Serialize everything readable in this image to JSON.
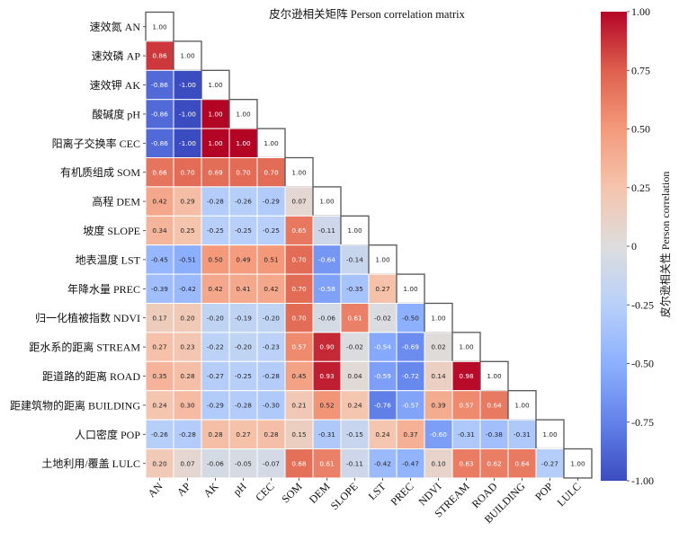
{
  "chart_data": {
    "type": "heatmap",
    "title": "皮尔逊相关矩阵 Person correlation matrix",
    "row_labels": [
      "速效氮 AN",
      "速效磷 AP",
      "速效钾 AK",
      "酸碱度 pH",
      "阳离子交换率 CEC",
      "有机质组成 SOM",
      "高程 DEM",
      "坡度 SLOPE",
      "地表温度 LST",
      "年降水量 PREC",
      "归一化植被指数 NDVI",
      "距水系的距离 STREAM",
      "距道路的距离 ROAD",
      "距建筑物的距离 BUILDING",
      "人口密度 POP",
      "土地利用/覆盖 LULC"
    ],
    "col_labels": [
      "AN",
      "AP",
      "AK",
      "pH",
      "CEC",
      "SOM",
      "DEM",
      "SLOPE",
      "LST",
      "PREC",
      "NDVI",
      "STREAM",
      "ROAD",
      "BUILDING",
      "POP",
      "LULC"
    ],
    "values": [
      [
        1.0
      ],
      [
        0.86,
        1.0
      ],
      [
        -0.86,
        -1.0,
        1.0
      ],
      [
        -0.86,
        -1.0,
        1.0,
        1.0
      ],
      [
        -0.86,
        -1.0,
        1.0,
        1.0,
        1.0
      ],
      [
        0.66,
        0.7,
        0.69,
        0.7,
        0.7,
        1.0
      ],
      [
        0.42,
        0.29,
        -0.28,
        -0.26,
        -0.29,
        0.07,
        1.0
      ],
      [
        0.34,
        0.25,
        -0.25,
        -0.25,
        -0.25,
        0.65,
        -0.11,
        1.0
      ],
      [
        -0.45,
        -0.51,
        0.5,
        0.49,
        0.51,
        0.7,
        -0.64,
        -0.14,
        1.0
      ],
      [
        -0.39,
        -0.42,
        0.42,
        0.41,
        0.42,
        0.7,
        -0.58,
        -0.35,
        0.27,
        1.0
      ],
      [
        0.17,
        0.2,
        -0.2,
        -0.19,
        -0.2,
        0.7,
        -0.06,
        0.61,
        -0.02,
        -0.5,
        1.0
      ],
      [
        0.27,
        0.23,
        -0.22,
        -0.2,
        -0.23,
        0.57,
        0.9,
        -0.02,
        -0.54,
        -0.69,
        0.02,
        1.0
      ],
      [
        0.35,
        0.28,
        -0.27,
        -0.25,
        -0.28,
        0.45,
        0.93,
        0.04,
        -0.59,
        -0.72,
        0.14,
        0.98,
        1.0
      ],
      [
        0.24,
        0.3,
        -0.29,
        -0.28,
        -0.3,
        0.21,
        0.52,
        0.24,
        -0.76,
        -0.57,
        0.39,
        0.57,
        0.64,
        1.0
      ],
      [
        -0.26,
        -0.28,
        0.28,
        0.27,
        0.28,
        0.15,
        -0.31,
        -0.15,
        0.24,
        0.37,
        -0.6,
        -0.31,
        -0.38,
        -0.31,
        1.0
      ],
      [
        0.2,
        0.07,
        -0.06,
        -0.05,
        -0.07,
        0.68,
        0.61,
        -0.11,
        -0.42,
        -0.47,
        0.1,
        0.63,
        0.62,
        0.64,
        -0.27,
        1.0
      ]
    ],
    "mask": "upper triangle",
    "diagonal_style": "white cell with gray border",
    "colormap": "coolwarm",
    "color_range": [
      -1,
      1
    ],
    "colorbar": {
      "label": "皮尔逊相关性 Person correlation",
      "ticks": [
        1.0,
        0.75,
        0.5,
        0.25,
        0,
        -0.25,
        -0.5,
        -0.75,
        -1.0
      ],
      "tick_labels": [
        "1.00",
        "0.75",
        "0.50",
        "0.25",
        "0",
        "-0.25",
        "-0.50",
        "-0.75",
        "-1.00"
      ],
      "placement": "right"
    },
    "colors": {
      "low": "#3b4cc0",
      "mid": "#dddddd",
      "high": "#b40426"
    },
    "annotation_format": "0.00"
  }
}
